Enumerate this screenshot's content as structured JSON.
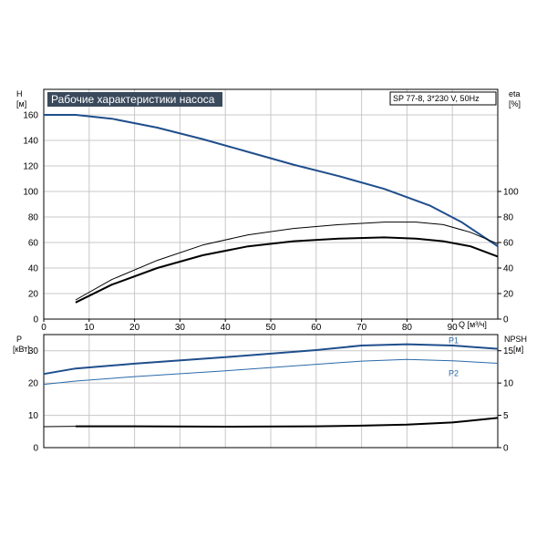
{
  "title": "Рабочие характеристики насоса",
  "model": "SP 77-8, 3*230 V, 50Hz",
  "colors": {
    "frame": "#000000",
    "grid": "#c8c8c8",
    "accent": "#1f4e8c",
    "p2": "#2a6aa8",
    "title_bg": "#3a4a5c"
  },
  "chart_data": [
    {
      "type": "line",
      "xlabel": "Q [м³/ч]",
      "left_axis": {
        "label_top": "H",
        "label_unit": "[м]",
        "ticks": [
          "0",
          "20",
          "40",
          "60",
          "80",
          "100",
          "120",
          "140",
          "160"
        ],
        "ylim": [
          0,
          180
        ]
      },
      "right_axis": {
        "label_top": "eta",
        "label_unit": "[%]",
        "ticks": [
          "0",
          "20",
          "40",
          "60",
          "80",
          "100"
        ],
        "ylim": [
          0,
          180
        ]
      },
      "x_ticks": [
        "0",
        "10",
        "20",
        "30",
        "40",
        "50",
        "60",
        "70",
        "80",
        "90"
      ],
      "xlim": [
        0,
        100
      ],
      "grid": true,
      "series": [
        {
          "axis": "left",
          "color": "#1f4e8c",
          "width": 2,
          "x": [
            0,
            7,
            15,
            25,
            35,
            45,
            55,
            65,
            75,
            85,
            92,
            100
          ],
          "y": [
            160,
            160,
            157,
            150,
            141,
            131,
            121,
            112,
            102,
            89,
            76,
            57
          ]
        },
        {
          "axis": "right",
          "color": "#000000",
          "width": 1,
          "x": [
            7,
            15,
            25,
            35,
            45,
            55,
            65,
            75,
            82,
            88,
            94,
            100
          ],
          "y": [
            15,
            31,
            46,
            58,
            66,
            71,
            74,
            76,
            76,
            74,
            68,
            59
          ]
        },
        {
          "axis": "right",
          "color": "#000000",
          "width": 2,
          "x": [
            7,
            15,
            25,
            35,
            45,
            55,
            65,
            75,
            82,
            88,
            94,
            100
          ],
          "y": [
            13,
            27,
            40,
            50,
            57,
            61,
            63,
            64,
            63,
            61,
            57,
            49
          ]
        }
      ]
    },
    {
      "type": "line",
      "left_axis": {
        "label_top": "P",
        "label_unit": "[кВт]",
        "ticks": [
          "0",
          "10",
          "20",
          "30"
        ],
        "ylim": [
          0,
          35
        ]
      },
      "right_axis": {
        "label_top": "NPSH",
        "label_unit": "[м]",
        "ticks": [
          "0",
          "5",
          "10",
          "15"
        ],
        "ylim": [
          0,
          17.5
        ]
      },
      "xlim": [
        0,
        100
      ],
      "grid": true,
      "series": [
        {
          "name": "P1",
          "axis": "left",
          "color": "#1f4e8c",
          "width": 2,
          "x": [
            0,
            7,
            20,
            40,
            60,
            70,
            80,
            90,
            100
          ],
          "y": [
            22.8,
            24.5,
            26.0,
            28.0,
            30.2,
            31.6,
            32.0,
            31.6,
            30.6
          ]
        },
        {
          "name": "P2",
          "axis": "left",
          "color": "#2a6aa8",
          "width": 1,
          "x": [
            0,
            7,
            20,
            40,
            60,
            70,
            80,
            90,
            100
          ],
          "y": [
            19.6,
            20.6,
            22.0,
            23.8,
            25.8,
            26.8,
            27.3,
            26.9,
            26.1
          ]
        },
        {
          "axis": "right",
          "color": "#000000",
          "width": 1,
          "x": [
            0,
            7
          ],
          "y": [
            3.25,
            3.3
          ]
        },
        {
          "axis": "right",
          "color": "#000000",
          "width": 2,
          "x": [
            7,
            20,
            40,
            60,
            70,
            80,
            90,
            100
          ],
          "y": [
            3.3,
            3.3,
            3.25,
            3.3,
            3.4,
            3.55,
            3.9,
            4.6
          ]
        }
      ]
    }
  ]
}
